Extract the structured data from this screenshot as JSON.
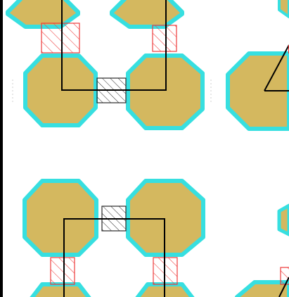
{
  "colors": {
    "pad_fill": "#d4b85f",
    "pad_outline": "#37dfe0",
    "red_hatch": "#ee3b3b",
    "black_hatch": "#2a2a2a",
    "wire": "#000000",
    "dot_grid": "#cfcfcf"
  },
  "legend": {},
  "groups": [
    {
      "id": "top-left-cluster",
      "pads": [
        "pad-tl-top-left",
        "pad-tl-top-right",
        "pad-tl-bottom-left",
        "pad-tl-bottom-right"
      ],
      "links": [
        "red-link-tl-left",
        "red-link-tl-right",
        "black-link-tl-middle"
      ]
    },
    {
      "id": "bottom-left-cluster",
      "pads": [
        "pad-bl-top-left",
        "pad-bl-top-right",
        "pad-bl-bottom-left",
        "pad-bl-bottom-right"
      ],
      "links": [
        "red-link-bl-left",
        "red-link-bl-right",
        "black-link-bl-middle"
      ]
    },
    {
      "id": "right-partial-cluster",
      "pads": [
        "pad-right-top",
        "pad-right-bottom",
        "pad-right-edge-middle"
      ],
      "links": [
        "red-link-right-bottom"
      ]
    }
  ]
}
